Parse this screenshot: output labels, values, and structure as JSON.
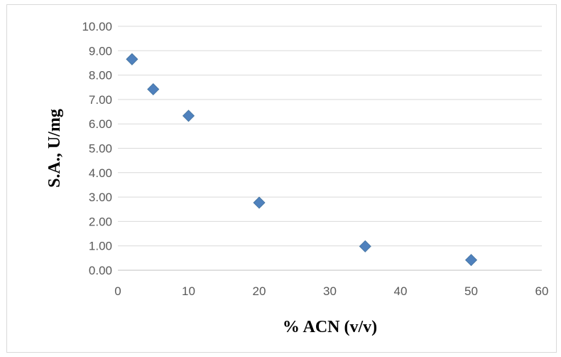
{
  "chart_data": {
    "type": "scatter",
    "xlabel": "% ACN (v/v)",
    "ylabel": "S.A., U/mg",
    "xlim": [
      0,
      60
    ],
    "ylim": [
      0,
      10
    ],
    "x_ticks": [
      "0",
      "10",
      "20",
      "30",
      "40",
      "50",
      "60"
    ],
    "y_ticks": [
      "0.00",
      "1.00",
      "2.00",
      "3.00",
      "4.00",
      "5.00",
      "6.00",
      "7.00",
      "8.00",
      "9.00",
      "10.00"
    ],
    "grid": "horizontal",
    "legend": "none",
    "marker": "diamond",
    "marker_color": "#4f81bd",
    "points": [
      {
        "x": 2,
        "y": 8.65
      },
      {
        "x": 5,
        "y": 7.42
      },
      {
        "x": 10,
        "y": 6.33
      },
      {
        "x": 20,
        "y": 2.77
      },
      {
        "x": 35,
        "y": 0.98
      },
      {
        "x": 50,
        "y": 0.42
      }
    ]
  }
}
